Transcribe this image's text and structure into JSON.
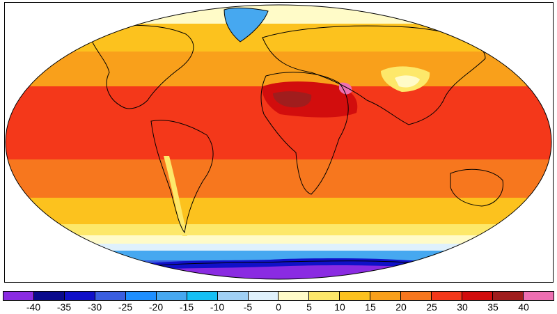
{
  "map": {
    "projection": "robinson",
    "field": "temperature",
    "land_outline_color": "#000000"
  },
  "legend": {
    "ticks": [
      "-40",
      "-35",
      "-30",
      "-25",
      "-20",
      "-15",
      "-10",
      "-5",
      "0",
      "5",
      "10",
      "15",
      "20",
      "25",
      "30",
      "35",
      "40"
    ],
    "colors": [
      "#8a2be2",
      "#0a0a8c",
      "#1010c8",
      "#3a5ee0",
      "#1e8fff",
      "#46a8f0",
      "#14c0f5",
      "#a0d0f5",
      "#dff1fc",
      "#fffbc8",
      "#fde86a",
      "#fcc21e",
      "#f9a01b",
      "#f7771e",
      "#f4381a",
      "#d20d0d",
      "#a01d1d",
      "#ee6fb2"
    ]
  }
}
